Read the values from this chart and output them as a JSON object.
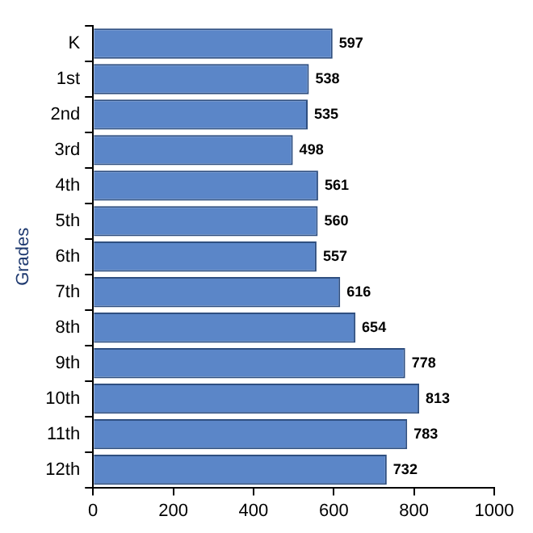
{
  "chart_data": {
    "type": "bar",
    "orientation": "horizontal",
    "ylabel": "Grades",
    "categories": [
      "K",
      "1st",
      "2nd",
      "3rd",
      "4th",
      "5th",
      "6th",
      "7th",
      "8th",
      "9th",
      "10th",
      "11th",
      "12th"
    ],
    "values": [
      597,
      538,
      535,
      498,
      561,
      560,
      557,
      616,
      654,
      778,
      813,
      783,
      732
    ],
    "color": "#5b86c8",
    "xlim": [
      0,
      1000
    ],
    "xticks": [
      0,
      200,
      400,
      600,
      800,
      1000
    ],
    "data_labels": true,
    "legend": false
  }
}
